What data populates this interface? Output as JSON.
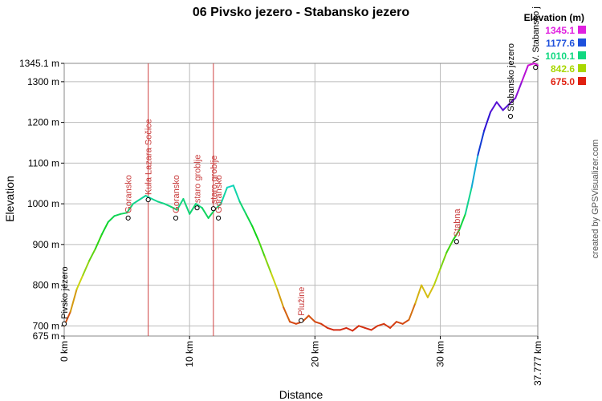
{
  "chart_data": {
    "type": "line",
    "title": "06 Pivsko jezero - Stabansko jezero",
    "xlabel": "Distance",
    "ylabel": "Elevation",
    "xlim": [
      0,
      37.777
    ],
    "ylim": [
      675,
      1345.1
    ],
    "x_ticks": [
      {
        "value": 0,
        "label": "0 km"
      },
      {
        "value": 10,
        "label": "10 km"
      },
      {
        "value": 20,
        "label": "20 km"
      },
      {
        "value": 30,
        "label": "30 km"
      },
      {
        "value": 37.777,
        "label": "37.777 km"
      }
    ],
    "y_ticks": [
      {
        "value": 675,
        "label": "675 m"
      },
      {
        "value": 700,
        "label": "700 m"
      },
      {
        "value": 800,
        "label": "800 m"
      },
      {
        "value": 900,
        "label": "900 m"
      },
      {
        "value": 1000,
        "label": "1000 m"
      },
      {
        "value": 1100,
        "label": "1100 m"
      },
      {
        "value": 1200,
        "label": "1200 m"
      },
      {
        "value": 1300,
        "label": "1300 m"
      },
      {
        "value": 1345.1,
        "label": "1345.1 m"
      }
    ],
    "grid": true,
    "series": [
      {
        "x": [
          0,
          0.5,
          1,
          1.5,
          2,
          2.5,
          3,
          3.5,
          4,
          4.5,
          5,
          5.5,
          6,
          6.5,
          7,
          7.5,
          8,
          8.5,
          9,
          9.5,
          10,
          10.5,
          11,
          11.5,
          12,
          12.5,
          13,
          13.5,
          14,
          14.5,
          15,
          15.5,
          16,
          16.5,
          17,
          17.5,
          18,
          18.5,
          19,
          19.5,
          20,
          20.5,
          21,
          21.5,
          22,
          22.5,
          23,
          23.5,
          24,
          24.5,
          25,
          25.5,
          26,
          26.5,
          27,
          27.5,
          28,
          28.5,
          29,
          29.5,
          30,
          30.5,
          31,
          31.5,
          32,
          32.5,
          33,
          33.5,
          34,
          34.5,
          35,
          35.5,
          36,
          36.5,
          37,
          37.5,
          37.777
        ],
        "y": [
          700,
          735,
          790,
          825,
          860,
          890,
          925,
          955,
          970,
          975,
          978,
          1000,
          1010,
          1020,
          1012,
          1005,
          1000,
          993,
          985,
          1012,
          975,
          1000,
          990,
          965,
          985,
          1000,
          1040,
          1045,
          1005,
          975,
          945,
          910,
          870,
          830,
          790,
          745,
          710,
          705,
          710,
          725,
          710,
          705,
          695,
          690,
          690,
          695,
          688,
          700,
          695,
          690,
          700,
          705,
          695,
          710,
          705,
          715,
          755,
          800,
          770,
          800,
          840,
          880,
          910,
          935,
          975,
          1040,
          1120,
          1180,
          1225,
          1250,
          1230,
          1245,
          1260,
          1300,
          1340,
          1345.1,
          1340
        ]
      }
    ],
    "waypoints": [
      {
        "x": 0,
        "y": 705,
        "label": "Pivsko jezero",
        "color": "black"
      },
      {
        "x": 5.1,
        "y": 965,
        "label": "Goransko",
        "color": "red"
      },
      {
        "x": 6.7,
        "y": 1010,
        "label": "Kula Lazara Sočice",
        "color": "red",
        "vline": true
      },
      {
        "x": 8.9,
        "y": 965,
        "label": "Goransko",
        "color": "red"
      },
      {
        "x": 10.6,
        "y": 990,
        "label": "staro groblje",
        "color": "red"
      },
      {
        "x": 11.9,
        "y": 988,
        "label": "staro groblje",
        "color": "red",
        "vline": true
      },
      {
        "x": 12.3,
        "y": 965,
        "label": "Goransko",
        "color": "red"
      },
      {
        "x": 18.9,
        "y": 713,
        "label": "Plužine",
        "color": "red"
      },
      {
        "x": 31.3,
        "y": 907,
        "label": "Stabna",
        "color": "red"
      },
      {
        "x": 35.6,
        "y": 1215,
        "label": "Stabansko jezero",
        "color": "black"
      },
      {
        "x": 37.6,
        "y": 1335,
        "label": "V. Stabansko j",
        "color": "black"
      }
    ],
    "legend": {
      "title": "Elevation (m)",
      "placement": "top-right",
      "entries": [
        {
          "label": "1345.1",
          "color": "#e020e0"
        },
        {
          "label": "1177.6",
          "color": "#1e50dc"
        },
        {
          "label": "1010.1",
          "color": "#10d880"
        },
        {
          "label": "842.6",
          "color": "#a8d800"
        },
        {
          "label": "675.0",
          "color": "#e02010"
        }
      ]
    },
    "credit": "created by GPSVisualizer.com"
  }
}
